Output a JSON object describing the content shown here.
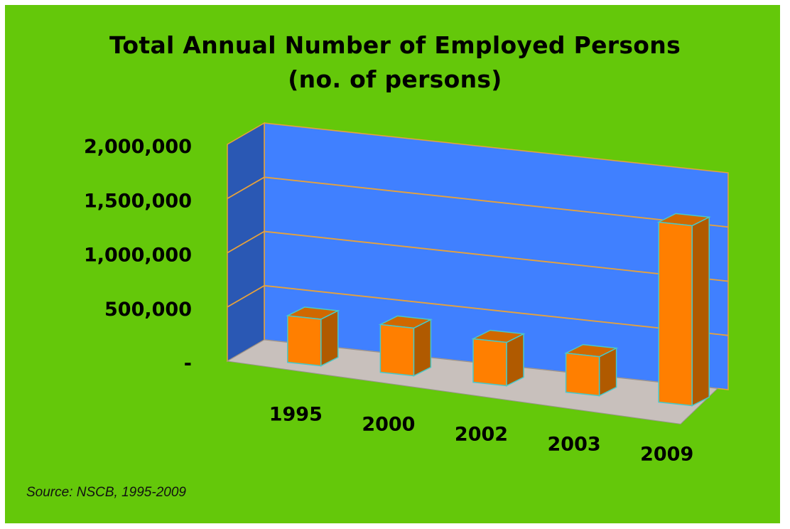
{
  "chart_data": {
    "type": "bar",
    "title": "Total Annual Number of Employed Persons",
    "subtitle": "(no. of persons)",
    "categories": [
      "1995",
      "2000",
      "2002",
      "2003",
      "2009"
    ],
    "values": [
      430000,
      440000,
      400000,
      360000,
      1660000
    ],
    "ylim": [
      0,
      2000000
    ],
    "yticks": [
      0,
      500000,
      1000000,
      1500000,
      2000000
    ],
    "ytick_labels": [
      "-",
      "500,000",
      "1,000,000",
      "1,500,000",
      "2,000,000"
    ],
    "grid": true,
    "style": "3d-column"
  },
  "source_note": "Source: NSCB, 1995-2009",
  "colors": {
    "background": "#64c80a",
    "back_wall": "#4080ff",
    "side_wall": "#2a58b4",
    "floor": "#c8c0bc",
    "gridline": "#e8a23a",
    "bar_front": "#ff7f00",
    "bar_side": "#b05a00",
    "bar_top": "#d06800",
    "bar_edge": "#48c8c8"
  }
}
